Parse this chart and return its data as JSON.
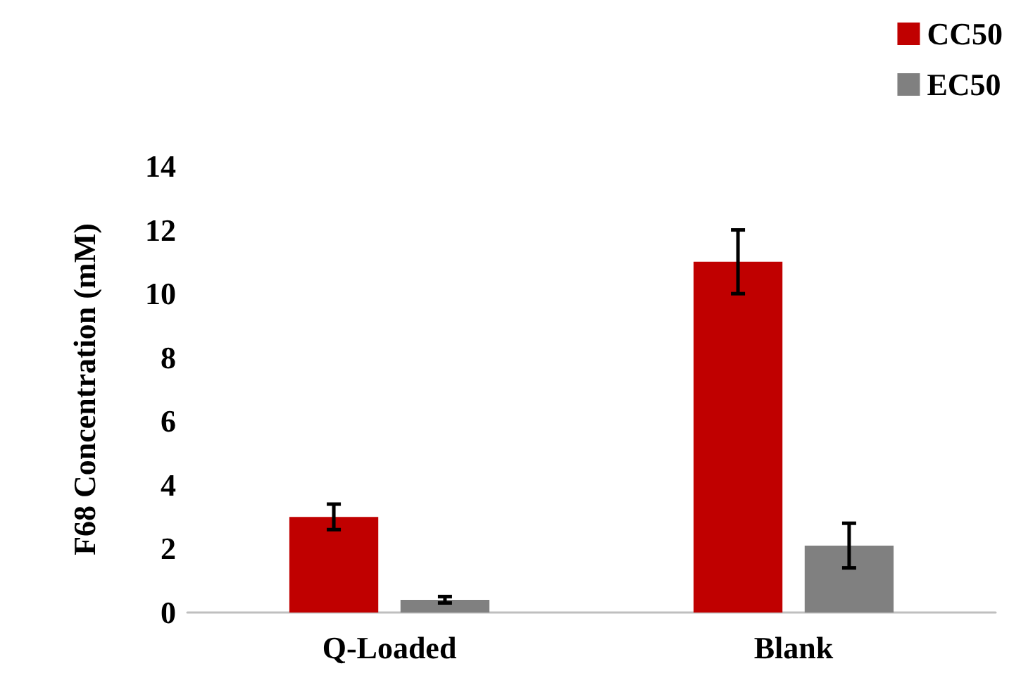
{
  "chart_data": {
    "type": "bar",
    "categories": [
      "Q-Loaded",
      "Blank"
    ],
    "ylabel": "F68 Concentration (mM)",
    "ylim": [
      0,
      14
    ],
    "yticks": [
      0,
      2,
      4,
      6,
      8,
      10,
      12,
      14
    ],
    "grid": false,
    "legend": "top right",
    "series": [
      {
        "name": "CC50",
        "color": "#c00000",
        "values": [
          3.0,
          11.0
        ],
        "errors": [
          0.4,
          1.0
        ]
      },
      {
        "name": "EC50",
        "color": "#808080",
        "values": [
          0.4,
          2.1
        ],
        "errors": [
          0.1,
          0.7
        ]
      }
    ]
  }
}
